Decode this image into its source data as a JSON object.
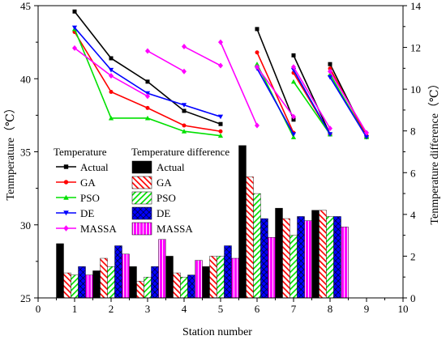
{
  "chart_data": {
    "type": "bar",
    "xlabel": "Station number",
    "ylabel_left": "Tenmperature（℃）",
    "ylabel_right": "Tenmperature difference（℃）",
    "xlim": [
      0,
      10
    ],
    "xticks": [
      0,
      1,
      2,
      3,
      4,
      5,
      6,
      7,
      8,
      9,
      10
    ],
    "ylim_left": [
      25,
      45
    ],
    "yticks_left": [
      25,
      30,
      35,
      40,
      45
    ],
    "ylim_right": [
      0,
      14
    ],
    "yticks_right": [
      0,
      2,
      4,
      6,
      8,
      10,
      12,
      14
    ],
    "grid": false,
    "legend_temperature": {
      "title": "Temperature",
      "placement": "middle-left",
      "entries": [
        "Actual",
        "GA",
        "PSO",
        "DE",
        "MASSA"
      ]
    },
    "legend_difference": {
      "title": "Temperature difference",
      "placement": "middle-center",
      "entries": [
        "Actual",
        "GA",
        "PSO",
        "DE",
        "MASSA"
      ]
    },
    "temperature_series": [
      {
        "name": "Actual",
        "color": "#000000",
        "marker": "square",
        "segments": [
          [
            [
              1,
              44.6
            ],
            [
              2,
              41.4
            ],
            [
              3,
              39.8
            ],
            [
              4,
              37.8
            ],
            [
              5,
              36.9
            ]
          ],
          [
            [
              6,
              43.4
            ],
            [
              7,
              37.2
            ]
          ],
          [
            [
              7,
              41.6
            ],
            [
              8,
              36.2
            ]
          ],
          [
            [
              8,
              41.0
            ],
            [
              9,
              36.0
            ]
          ]
        ]
      },
      {
        "name": "GA",
        "color": "#ff0000",
        "marker": "circle",
        "segments": [
          [
            [
              1,
              43.2
            ],
            [
              2,
              39.1
            ],
            [
              3,
              38.0
            ],
            [
              4,
              36.8
            ],
            [
              5,
              36.4
            ]
          ],
          [
            [
              6,
              41.8
            ],
            [
              7,
              36.3
            ]
          ],
          [
            [
              7,
              40.4
            ],
            [
              8,
              36.2
            ]
          ],
          [
            [
              8,
              40.7
            ],
            [
              9,
              36.1
            ]
          ]
        ]
      },
      {
        "name": "PSO",
        "color": "#00e000",
        "marker": "triangle-up",
        "segments": [
          [
            [
              1,
              43.4
            ],
            [
              2,
              37.3
            ],
            [
              3,
              37.3
            ],
            [
              4,
              36.4
            ],
            [
              5,
              36.1
            ]
          ],
          [
            [
              6,
              41.0
            ],
            [
              7,
              36.0
            ]
          ],
          [
            [
              7,
              39.8
            ],
            [
              8,
              36.2
            ]
          ],
          [
            [
              8,
              40.3
            ],
            [
              9,
              36.0
            ]
          ]
        ]
      },
      {
        "name": "DE",
        "color": "#0000ff",
        "marker": "triangle-down",
        "segments": [
          [
            [
              1,
              43.5
            ],
            [
              2,
              40.6
            ],
            [
              3,
              39.0
            ],
            [
              4,
              38.2
            ],
            [
              5,
              37.4
            ]
          ],
          [
            [
              6,
              40.7
            ],
            [
              7,
              36.2
            ]
          ],
          [
            [
              7,
              40.6
            ],
            [
              8,
              36.2
            ]
          ],
          [
            [
              8,
              40.1
            ],
            [
              9,
              36.0
            ]
          ]
        ]
      },
      {
        "name": "MASSA",
        "color": "#ff00ff",
        "marker": "diamond",
        "segments": [
          [
            [
              1,
              42.1
            ],
            [
              2,
              40.2
            ],
            [
              3,
              38.8
            ]
          ],
          [
            [
              3,
              41.9
            ],
            [
              4,
              40.5
            ]
          ],
          [
            [
              4,
              42.2
            ],
            [
              5,
              40.9
            ]
          ],
          [
            [
              5,
              42.5
            ],
            [
              6,
              36.8
            ]
          ],
          [
            [
              6,
              40.8
            ],
            [
              7,
              37.4
            ]
          ],
          [
            [
              7,
              40.8
            ],
            [
              8,
              36.6
            ]
          ],
          [
            [
              8,
              40.5
            ],
            [
              9,
              36.3
            ]
          ]
        ]
      }
    ],
    "difference_series": [
      {
        "name": "Actual",
        "color": "#000000",
        "pattern": "solid",
        "x": [
          1,
          2,
          3,
          4,
          5,
          6,
          7,
          8
        ],
        "values": [
          2.6,
          1.3,
          1.5,
          2.0,
          1.5,
          7.3,
          4.3,
          4.2
        ]
      },
      {
        "name": "GA",
        "color": "#ff0000",
        "pattern": "hatch",
        "x": [
          1,
          2,
          3,
          4,
          5,
          6,
          7,
          8
        ],
        "values": [
          1.2,
          1.9,
          0.8,
          1.2,
          2.0,
          5.8,
          3.8,
          4.2
        ]
      },
      {
        "name": "PSO",
        "color": "#00e000",
        "pattern": "hatch",
        "x": [
          1,
          2,
          3,
          4,
          5,
          6,
          7,
          8
        ],
        "values": [
          1.1,
          1.5,
          1.0,
          1.0,
          2.0,
          5.0,
          3.0,
          3.9
        ]
      },
      {
        "name": "DE",
        "color": "#0000ff",
        "pattern": "crosshatch",
        "x": [
          1,
          2,
          3,
          4,
          5,
          6,
          7,
          8
        ],
        "values": [
          1.5,
          2.5,
          1.5,
          1.1,
          2.5,
          3.8,
          3.9,
          3.9
        ]
      },
      {
        "name": "MASSA",
        "color": "#ff00ff",
        "pattern": "hatch",
        "x": [
          1,
          2,
          3,
          4,
          5,
          6,
          7,
          8
        ],
        "values": [
          1.1,
          2.1,
          2.8,
          1.8,
          1.9,
          2.9,
          3.7,
          3.4
        ]
      }
    ]
  }
}
